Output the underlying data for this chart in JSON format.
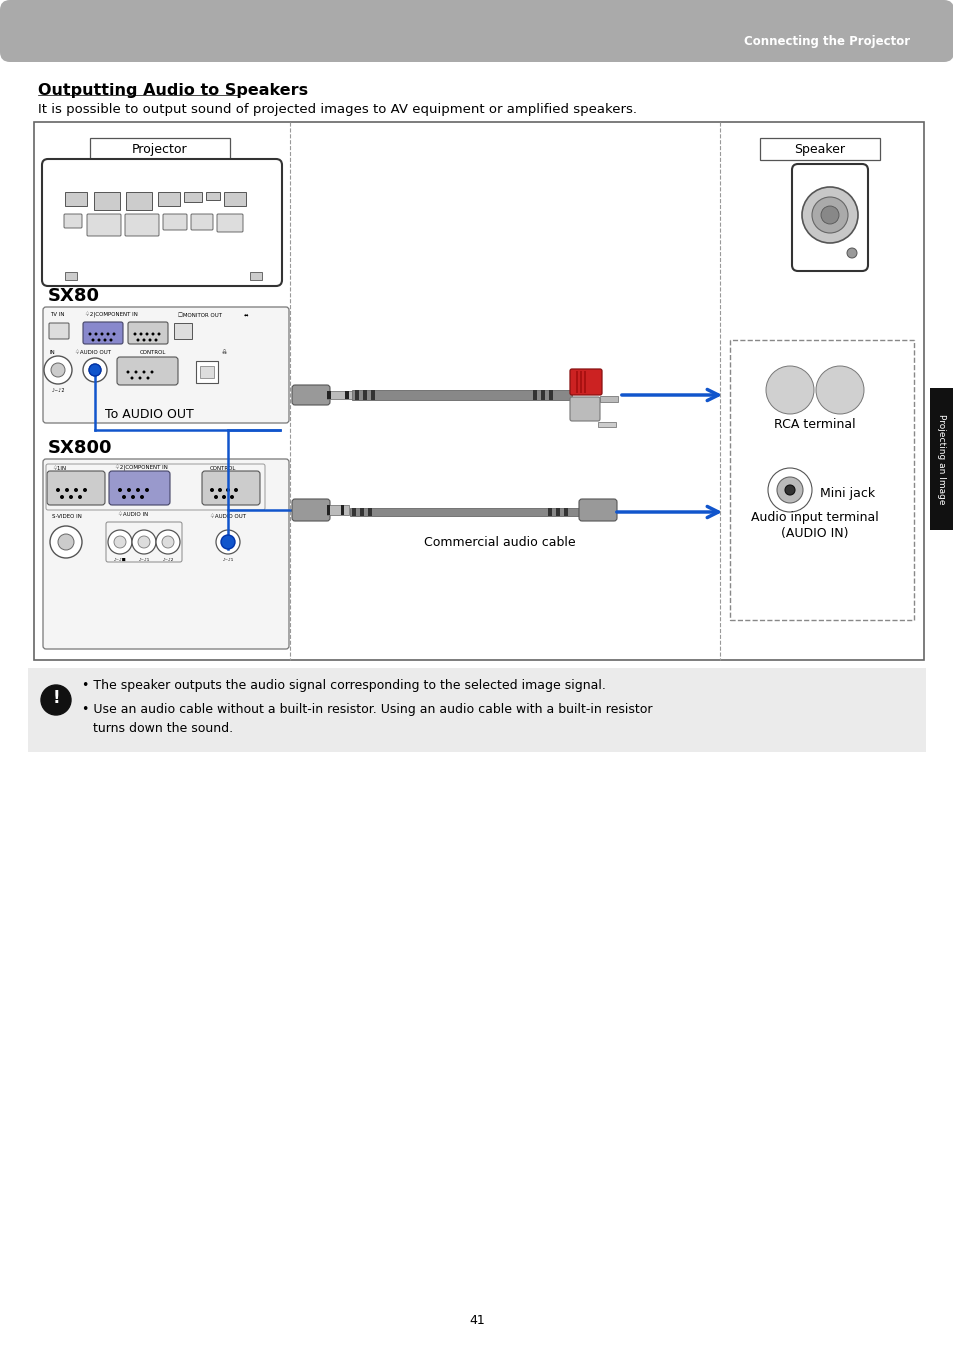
{
  "page_title": "Connecting the Projector",
  "section_title": "Outputting Audio to Speakers",
  "section_subtitle": "It is possible to output sound of projected images to AV equipment or amplified speakers.",
  "header_bg": "#aaaaaa",
  "page_bg": "#ffffff",
  "note_bg": "#ebebeb",
  "page_number": "41",
  "sidebar_text": "Projecting an Image",
  "sidebar_fg": "#ffffff",
  "note_text_1": "The speaker outputs the audio signal corresponding to the selected image signal.",
  "note_text_2": "Use an audio cable without a built-in resistor. Using an audio cable with a built-in resistor",
  "note_text_3": "turns down the sound.",
  "label_projector": "Projector",
  "label_speaker": "Speaker",
  "label_sx80": "SX80",
  "label_sx800": "SX800",
  "label_audio_out": "To AUDIO OUT",
  "label_commercial": "Commercial audio cable",
  "label_rca": "RCA terminal",
  "label_mini_jack": "Mini jack",
  "label_audio_input_1": "Audio input terminal",
  "label_audio_input_2": "(AUDIO IN)",
  "arrow_color": "#1155cc",
  "dark_color": "#111111",
  "diag_border": "#888888",
  "line_color": "#333333"
}
